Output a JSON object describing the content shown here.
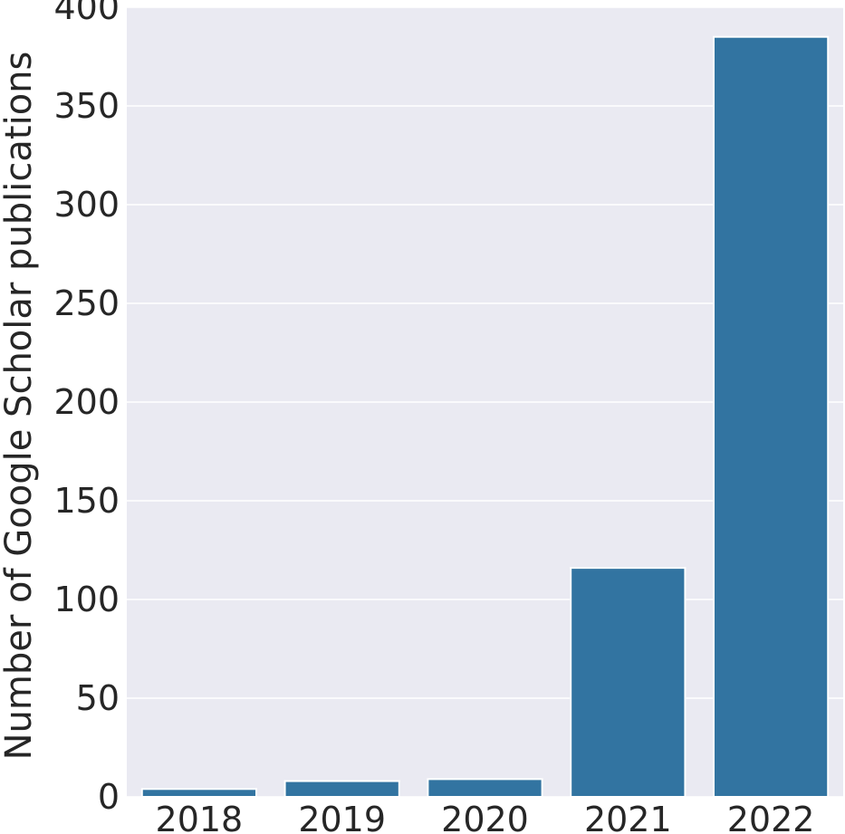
{
  "chart_data": {
    "type": "bar",
    "title": "",
    "xlabel": "",
    "ylabel": "Number of Google Scholar publications",
    "categories": [
      "2018",
      "2019",
      "2020",
      "2021",
      "2022"
    ],
    "values": [
      4,
      8,
      9,
      116,
      385
    ],
    "ylim": [
      0,
      400
    ],
    "yticks": [
      0,
      50,
      100,
      150,
      200,
      250,
      300,
      350,
      400
    ],
    "grid": true,
    "legend": "none",
    "colors": {
      "background": "#eaeaf2",
      "bar": "#3274a1",
      "grid": "#ffffff",
      "text": "#262626"
    }
  }
}
